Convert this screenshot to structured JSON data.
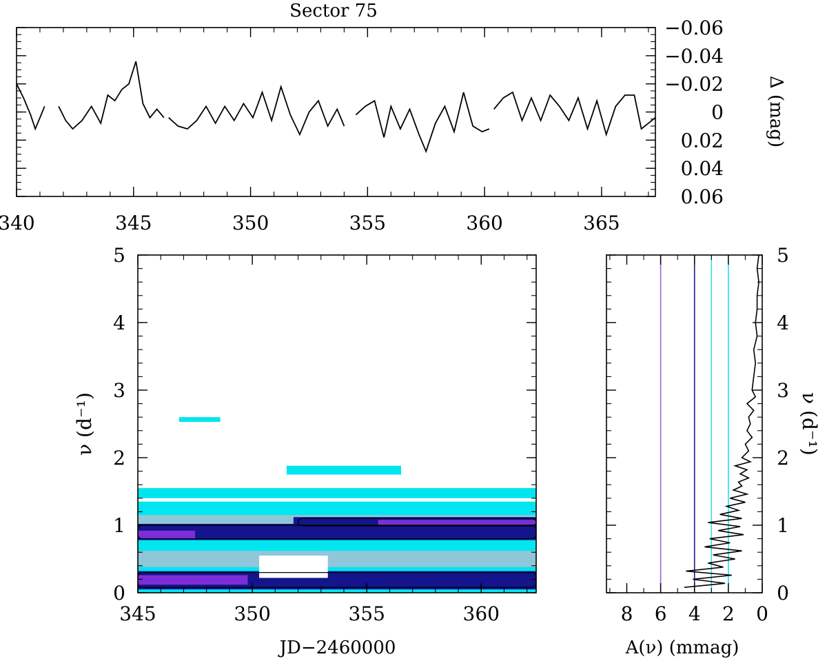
{
  "colors": {
    "axis": "#000000",
    "cyan": "#00e5ee",
    "light_blue": "#8fc7d8",
    "navy": "#14148c",
    "purple": "#7b2ed6",
    "violet_line": "#a05fd8",
    "navy_line": "#1c1c90",
    "teal_line": "#40d8d0",
    "cyan_line": "#20e0e8"
  },
  "chart_data": [
    {
      "id": "lightcurve",
      "type": "line",
      "title": "Sector 75",
      "xlabel": "",
      "ylabel": "Δ (mag)",
      "xlim": [
        340,
        367.3
      ],
      "ylim": [
        0.06,
        -0.06
      ],
      "y_inverted": true,
      "xticks": [
        "340",
        "345",
        "350",
        "355",
        "360",
        "365"
      ],
      "yticks": [
        "−0.06",
        "−0.04",
        "−0.02",
        "0",
        "0.02",
        "0.04",
        "0.06"
      ],
      "segments": [
        {
          "x": [
            340.0,
            340.3,
            340.6,
            340.8,
            341.0,
            341.2
          ],
          "y": [
            -0.02,
            -0.01,
            0.002,
            0.012,
            0.004,
            -0.004
          ]
        },
        {
          "x": [
            341.8,
            342.1,
            342.4,
            342.8,
            343.2,
            343.6,
            343.9,
            344.2,
            344.5,
            344.8,
            345.1,
            345.4,
            345.7,
            346.0,
            346.3
          ],
          "y": [
            -0.004,
            0.006,
            0.012,
            0.006,
            -0.004,
            0.008,
            -0.012,
            -0.008,
            -0.016,
            -0.02,
            -0.036,
            -0.006,
            0.004,
            -0.002,
            0.004
          ]
        },
        {
          "x": [
            346.5,
            346.9,
            347.3,
            347.7,
            348.1,
            348.5,
            348.9,
            349.3,
            349.7,
            350.1,
            350.5,
            350.9,
            351.3,
            351.7,
            352.1,
            352.5,
            352.9,
            353.3,
            353.7,
            354.0
          ],
          "y": [
            0.004,
            0.01,
            0.012,
            0.006,
            -0.004,
            0.008,
            -0.004,
            0.006,
            -0.006,
            0.004,
            -0.014,
            0.006,
            -0.018,
            0.002,
            0.016,
            0.0,
            -0.008,
            0.01,
            -0.002,
            0.01
          ]
        },
        {
          "x": [
            354.5,
            354.9,
            355.3,
            355.7,
            356.0,
            356.4,
            356.8,
            357.2,
            357.5,
            357.9,
            358.3,
            358.7,
            359.1,
            359.5,
            359.9,
            360.2
          ],
          "y": [
            0.002,
            -0.004,
            -0.008,
            0.018,
            -0.004,
            0.012,
            -0.002,
            0.016,
            0.028,
            0.008,
            -0.004,
            0.014,
            -0.014,
            0.01,
            0.014,
            0.012
          ]
        },
        {
          "x": [
            360.4,
            360.8,
            361.2,
            361.6,
            362.0,
            362.4,
            362.8,
            363.2,
            363.6,
            364.0,
            364.4,
            364.8,
            365.2,
            365.6,
            366.0,
            366.4,
            366.7,
            367.0,
            367.3
          ],
          "y": [
            -0.002,
            -0.01,
            -0.014,
            0.006,
            -0.01,
            0.006,
            -0.012,
            -0.004,
            0.006,
            -0.01,
            0.012,
            -0.008,
            0.016,
            -0.004,
            -0.012,
            -0.012,
            0.012,
            0.008,
            0.004
          ]
        }
      ]
    },
    {
      "id": "dynamic-spectrum",
      "type": "heatmap",
      "xlabel": "JD−2460000",
      "ylabel": "ν (d⁻¹)",
      "xlim": [
        345,
        362.4
      ],
      "ylim": [
        0,
        5
      ],
      "xticks": [
        "345",
        "350",
        "355",
        "360"
      ],
      "yticks": [
        "0",
        "1",
        "2",
        "3",
        "4",
        "5"
      ],
      "bands": [
        {
          "level": "cyan",
          "x": [
            345.0,
            362.4
          ],
          "y": [
            0.0,
            1.35
          ]
        },
        {
          "level": "cyan",
          "x": [
            345.0,
            362.4
          ],
          "y": [
            1.4,
            1.55
          ]
        },
        {
          "level": "cyan",
          "x": [
            351.5,
            356.5
          ],
          "y": [
            1.75,
            1.88
          ]
        },
        {
          "level": "cyan",
          "x": [
            346.8,
            348.6
          ],
          "y": [
            2.53,
            2.6
          ]
        },
        {
          "level": "light_blue",
          "x": [
            345.0,
            362.4
          ],
          "y": [
            0.38,
            0.62
          ]
        },
        {
          "level": "light_blue",
          "x": [
            345.0,
            362.4
          ],
          "y": [
            0.88,
            1.15
          ]
        },
        {
          "level": "navy",
          "x": [
            345.0,
            362.4
          ],
          "y": [
            0.78,
            1.02
          ]
        },
        {
          "level": "navy",
          "x": [
            345.0,
            362.4
          ],
          "y": [
            0.05,
            0.32
          ]
        },
        {
          "level": "navy",
          "x": [
            351.8,
            362.4
          ],
          "y": [
            0.98,
            1.12
          ]
        },
        {
          "level": "purple",
          "x": [
            345.0,
            349.8
          ],
          "y": [
            0.12,
            0.26
          ]
        },
        {
          "level": "purple",
          "x": [
            355.5,
            362.4
          ],
          "y": [
            1.0,
            1.08
          ]
        },
        {
          "level": "purple",
          "x": [
            345.0,
            347.5
          ],
          "y": [
            0.8,
            0.92
          ]
        }
      ]
    },
    {
      "id": "amplitude-spectrum",
      "type": "line",
      "xlabel": "A(ν) (mmag)",
      "ylabel": "ν (d⁻¹)",
      "xlim": [
        9.2,
        0
      ],
      "ylim": [
        0,
        5
      ],
      "xticks": [
        "8",
        "6",
        "4",
        "2",
        "0"
      ],
      "yticks": [
        "0",
        "1",
        "2",
        "3",
        "4",
        "5"
      ],
      "threshold_lines": [
        {
          "amplitude": 6.0,
          "color_key": "violet_line"
        },
        {
          "amplitude": 4.0,
          "color_key": "navy_line"
        },
        {
          "amplitude": 3.0,
          "color_key": "teal_line"
        },
        {
          "amplitude": 2.0,
          "color_key": "cyan_line"
        }
      ],
      "nu": [
        0.08,
        0.14,
        0.2,
        0.26,
        0.32,
        0.38,
        0.44,
        0.5,
        0.56,
        0.62,
        0.68,
        0.74,
        0.8,
        0.86,
        0.92,
        0.98,
        1.04,
        1.1,
        1.16,
        1.22,
        1.28,
        1.34,
        1.4,
        1.46,
        1.52,
        1.58,
        1.64,
        1.7,
        1.76,
        1.82,
        1.88,
        1.94,
        2.0,
        2.1,
        2.2,
        2.3,
        2.4,
        2.5,
        2.6,
        2.7,
        2.8,
        2.9,
        3.0,
        3.2,
        3.4,
        3.6,
        3.8,
        4.0,
        4.2,
        4.4,
        4.6,
        4.8,
        5.0
      ],
      "amp": [
        4.6,
        2.2,
        4.1,
        1.8,
        4.5,
        2.3,
        3.2,
        1.6,
        2.9,
        1.2,
        3.4,
        1.9,
        3.1,
        1.1,
        2.6,
        1.3,
        3.2,
        1.2,
        2.5,
        1.4,
        2.1,
        1.0,
        1.9,
        0.9,
        1.7,
        1.2,
        1.4,
        0.8,
        1.3,
        0.9,
        1.6,
        0.7,
        1.2,
        0.8,
        1.0,
        0.6,
        0.9,
        0.7,
        0.8,
        0.5,
        0.9,
        0.4,
        0.6,
        0.5,
        0.4,
        0.5,
        0.3,
        0.4,
        0.3,
        0.3,
        0.2,
        0.3,
        0.2
      ]
    }
  ]
}
